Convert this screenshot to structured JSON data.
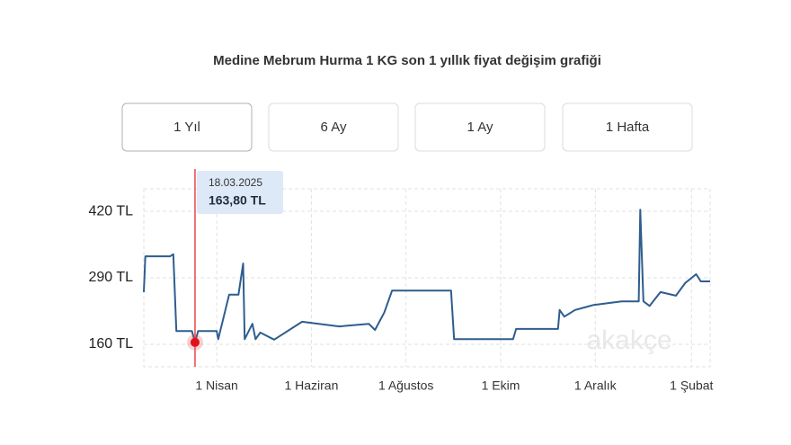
{
  "chart_data": {
    "type": "line",
    "title": "Medine Mebrum Hurma 1 KG son 1 yıllık fiyat değişim grafiği",
    "buttons": [
      "1 Yıl",
      "6 Ay",
      "1 Ay",
      "1 Hafta"
    ],
    "selected_button": 0,
    "watermark": "akakçe",
    "x": [
      "2025-02-13",
      "2025-02-14",
      "2025-03-02",
      "2025-03-04",
      "2025-03-06",
      "2025-03-16",
      "2025-03-18",
      "2025-03-20",
      "2025-04-01",
      "2025-04-02",
      "2025-04-09",
      "2025-04-15",
      "2025-04-18",
      "2025-04-19",
      "2025-04-24",
      "2025-04-26",
      "2025-04-29",
      "2025-05-08",
      "2025-05-26",
      "2025-06-19",
      "2025-07-08",
      "2025-07-12",
      "2025-07-18",
      "2025-07-23",
      "2025-08-30",
      "2025-09-01",
      "2025-10-09",
      "2025-10-11",
      "2025-11-07",
      "2025-11-08",
      "2025-11-11",
      "2025-11-18",
      "2025-11-24",
      "2025-11-30",
      "2025-12-18",
      "2025-12-29",
      "2025-12-30",
      "2026-01-01",
      "2026-01-05",
      "2026-01-12",
      "2026-01-22",
      "2026-01-28",
      "2026-02-04",
      "2026-02-07",
      "2026-02-13"
    ],
    "series": [
      {
        "name": "Fiyat",
        "color": "#2e5d8e",
        "values": [
          262,
          332,
          332,
          336,
          186,
          186,
          163.8,
          186,
          186,
          170,
          257,
          257,
          318,
          170,
          200,
          170,
          183,
          169,
          204,
          195,
          200,
          188,
          222,
          265,
          265,
          170,
          170,
          190,
          190,
          227,
          214,
          227,
          232,
          237,
          244,
          244,
          423,
          244,
          235,
          262,
          255,
          280,
          297,
          283,
          283
        ]
      }
    ],
    "tooltip": {
      "index": 6,
      "date": "18.03.2025",
      "label": "163,80 TL"
    },
    "xlim": [
      "2025-02-13",
      "2026-02-13"
    ],
    "xticks": [
      {
        "value": "2025-04-01",
        "label": "1 Nisan"
      },
      {
        "value": "2025-06-01",
        "label": "1 Haziran"
      },
      {
        "value": "2025-08-01",
        "label": "1 Ağustos"
      },
      {
        "value": "2025-10-01",
        "label": "1 Ekim"
      },
      {
        "value": "2025-12-01",
        "label": "1 Aralık"
      },
      {
        "value": "2026-02-01",
        "label": "1 Şubat"
      }
    ],
    "ylim": [
      116,
      464
    ],
    "yticks": [
      {
        "value": 160,
        "label": "160 TL"
      },
      {
        "value": 290,
        "label": "290 TL"
      },
      {
        "value": 420,
        "label": "420 TL"
      }
    ],
    "grid": true
  }
}
